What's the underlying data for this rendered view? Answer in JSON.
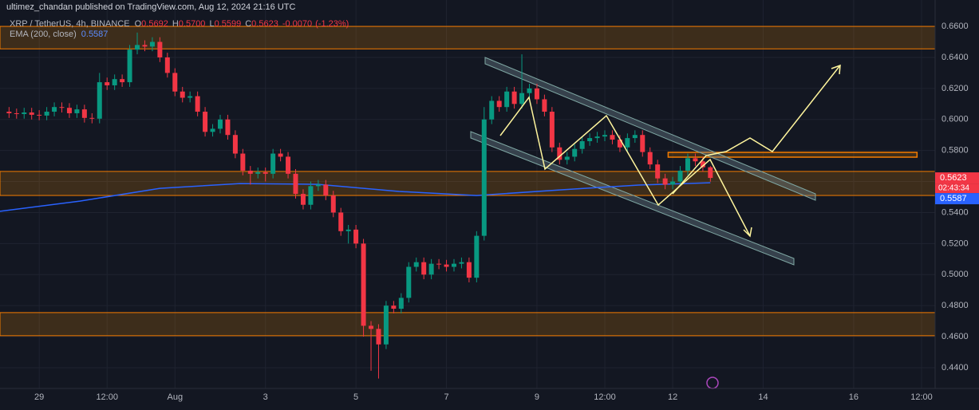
{
  "chart_data": {
    "type": "candlestick",
    "title": "ultimez_chandan published on TradingView.com, Aug 12, 2024 21:16 UTC",
    "subtitle": "XRP / TetherUS, 4h, BINANCE",
    "ohlc": {
      "keys": [
        "O",
        "H",
        "L",
        "C"
      ],
      "values": [
        0.5692,
        0.57,
        0.5599,
        0.5623
      ],
      "value_labels": [
        "0.5692",
        "0.5700",
        "0.5599",
        "0.5623"
      ],
      "change": {
        "value": -0.007,
        "label": "-0.0070"
      },
      "change_pct": {
        "value": -1.23,
        "label": "(-1.23%)"
      }
    },
    "up_color": "#089981",
    "down_color": "#f23645",
    "x": [
      0,
      1,
      2,
      3,
      4,
      5,
      6,
      7,
      8,
      9,
      10,
      11,
      12,
      13,
      14,
      15,
      16,
      17,
      18,
      19,
      20,
      21,
      22,
      23,
      24,
      25,
      26,
      27,
      28,
      29,
      30,
      31,
      32,
      33,
      34,
      35,
      36,
      37,
      38,
      39,
      40,
      41,
      42,
      43,
      44,
      45,
      46,
      47,
      48,
      49,
      50,
      51,
      52,
      53,
      54,
      55,
      56,
      57,
      58,
      59,
      60,
      61,
      62,
      63,
      64,
      65,
      66,
      67,
      68,
      69,
      70,
      71,
      72,
      73,
      74,
      75,
      76,
      77,
      78,
      79,
      80,
      81,
      82,
      83,
      84,
      85,
      86,
      87,
      88,
      89,
      90,
      91,
      92,
      93
    ],
    "open": [
      0.605,
      0.604,
      0.6035,
      0.6045,
      0.603,
      0.6025,
      0.605,
      0.608,
      0.6075,
      0.604,
      0.6065,
      0.601,
      0.6005,
      0.624,
      0.622,
      0.626,
      0.624,
      0.645,
      0.648,
      0.647,
      0.65,
      0.64,
      0.63,
      0.618,
      0.614,
      0.615,
      0.605,
      0.592,
      0.594,
      0.6,
      0.59,
      0.578,
      0.567,
      0.565,
      0.566,
      0.565,
      0.578,
      0.576,
      0.565,
      0.552,
      0.545,
      0.557,
      0.558,
      0.551,
      0.54,
      0.528,
      0.529,
      0.52,
      0.467,
      0.465,
      0.455,
      0.48,
      0.478,
      0.485,
      0.505,
      0.508,
      0.5,
      0.507,
      0.5065,
      0.505,
      0.507,
      0.508,
      0.498,
      0.525,
      0.6,
      0.612,
      0.608,
      0.618,
      0.61,
      0.617,
      0.62,
      0.613,
      0.605,
      0.582,
      0.574,
      0.576,
      0.581,
      0.586,
      0.588,
      0.589,
      0.59,
      0.587,
      0.582,
      0.588,
      0.59,
      0.579,
      0.571,
      0.562,
      0.558,
      0.56,
      0.567,
      0.575,
      0.573,
      0.5692
    ],
    "high": [
      0.608,
      0.607,
      0.6075,
      0.6075,
      0.606,
      0.608,
      0.611,
      0.611,
      0.6105,
      0.6095,
      0.6095,
      0.604,
      0.63,
      0.627,
      0.629,
      0.629,
      0.648,
      0.656,
      0.651,
      0.653,
      0.653,
      0.643,
      0.633,
      0.621,
      0.618,
      0.618,
      0.608,
      0.597,
      0.603,
      0.603,
      0.593,
      0.581,
      0.57,
      0.569,
      0.569,
      0.581,
      0.581,
      0.579,
      0.568,
      0.555,
      0.56,
      0.561,
      0.561,
      0.554,
      0.543,
      0.532,
      0.532,
      0.523,
      0.47,
      0.468,
      0.483,
      0.483,
      0.488,
      0.508,
      0.511,
      0.511,
      0.51,
      0.51,
      0.5095,
      0.51,
      0.511,
      0.511,
      0.528,
      0.608,
      0.615,
      0.615,
      0.621,
      0.621,
      0.642,
      0.623,
      0.623,
      0.616,
      0.608,
      0.585,
      0.579,
      0.584,
      0.589,
      0.591,
      0.592,
      0.593,
      0.593,
      0.59,
      0.591,
      0.593,
      0.593,
      0.582,
      0.574,
      0.565,
      0.563,
      0.57,
      0.578,
      0.578,
      0.576,
      0.57
    ],
    "low": [
      0.601,
      0.6005,
      0.6005,
      0.6,
      0.5995,
      0.5995,
      0.602,
      0.6045,
      0.601,
      0.601,
      0.598,
      0.5975,
      0.5975,
      0.619,
      0.619,
      0.621,
      0.621,
      0.642,
      0.644,
      0.644,
      0.637,
      0.627,
      0.615,
      0.611,
      0.611,
      0.602,
      0.589,
      0.589,
      0.591,
      0.587,
      0.575,
      0.564,
      0.558,
      0.562,
      0.56,
      0.562,
      0.573,
      0.562,
      0.549,
      0.542,
      0.542,
      0.554,
      0.548,
      0.537,
      0.525,
      0.52,
      0.517,
      0.46,
      0.438,
      0.433,
      0.452,
      0.475,
      0.475,
      0.482,
      0.502,
      0.497,
      0.497,
      0.5035,
      0.502,
      0.502,
      0.504,
      0.495,
      0.495,
      0.522,
      0.597,
      0.605,
      0.605,
      0.607,
      0.607,
      0.614,
      0.61,
      0.602,
      0.579,
      0.571,
      0.571,
      0.573,
      0.578,
      0.583,
      0.585,
      0.586,
      0.584,
      0.579,
      0.579,
      0.585,
      0.576,
      0.568,
      0.559,
      0.555,
      0.555,
      0.557,
      0.564,
      0.57,
      0.5662,
      0.5599
    ],
    "close": [
      0.604,
      0.6035,
      0.6045,
      0.603,
      0.6025,
      0.605,
      0.608,
      0.6075,
      0.604,
      0.6065,
      0.601,
      0.6005,
      0.624,
      0.622,
      0.626,
      0.624,
      0.645,
      0.648,
      0.647,
      0.65,
      0.64,
      0.63,
      0.618,
      0.614,
      0.615,
      0.605,
      0.592,
      0.594,
      0.6,
      0.59,
      0.578,
      0.567,
      0.565,
      0.566,
      0.565,
      0.578,
      0.576,
      0.565,
      0.552,
      0.545,
      0.557,
      0.558,
      0.551,
      0.54,
      0.528,
      0.529,
      0.52,
      0.467,
      0.465,
      0.455,
      0.48,
      0.478,
      0.485,
      0.505,
      0.508,
      0.5,
      0.507,
      0.5065,
      0.505,
      0.507,
      0.508,
      0.498,
      0.525,
      0.6,
      0.612,
      0.608,
      0.618,
      0.61,
      0.617,
      0.62,
      0.613,
      0.605,
      0.582,
      0.574,
      0.576,
      0.581,
      0.586,
      0.588,
      0.589,
      0.59,
      0.587,
      0.582,
      0.588,
      0.59,
      0.579,
      0.571,
      0.562,
      0.558,
      0.56,
      0.567,
      0.575,
      0.573,
      0.5692,
      0.5623
    ],
    "ema": {
      "name": "EMA (200, close)",
      "color": "#2962ff",
      "value": 0.5587,
      "x": [
        -1.2,
        9.4,
        20,
        30.6,
        41,
        51.7,
        62,
        73,
        83.5,
        93
      ],
      "values": [
        0.5408,
        0.5474,
        0.5556,
        0.5587,
        0.5582,
        0.5536,
        0.551,
        0.5546,
        0.5577,
        0.5592
      ]
    },
    "zones": [
      {
        "top": 0.66,
        "bottom": 0.6455
      },
      {
        "top": 0.5665,
        "bottom": 0.551
      },
      {
        "top": 0.4755,
        "bottom": 0.4606
      }
    ],
    "box": {
      "top": 0.5788,
      "bottom": 0.5757,
      "x": [
        87.4,
        120.4
      ]
    },
    "last_price": 0.5623,
    "countdown": "02:43:34",
    "xlim": [
      -1.2,
      122.8
    ],
    "ylim": [
      0.4266,
      0.677
    ],
    "xticks": [
      {
        "value": 4,
        "label": "29"
      },
      {
        "value": 13,
        "label": "12:00"
      },
      {
        "value": 22,
        "label": "Aug"
      },
      {
        "value": 34,
        "label": "3"
      },
      {
        "value": 46,
        "label": "5"
      },
      {
        "value": 58,
        "label": "7"
      },
      {
        "value": 70,
        "label": "9"
      },
      {
        "value": 79,
        "label": "12:00"
      },
      {
        "value": 88,
        "label": "12"
      },
      {
        "value": 100,
        "label": "14"
      },
      {
        "value": 112,
        "label": "16"
      },
      {
        "value": 121,
        "label": "12:00"
      }
    ],
    "yticks": [
      {
        "value": 0.66,
        "label": "0.6600"
      },
      {
        "value": 0.64,
        "label": "0.6400"
      },
      {
        "value": 0.62,
        "label": "0.6200"
      },
      {
        "value": 0.6,
        "label": "0.6000"
      },
      {
        "value": 0.58,
        "label": "0.5800"
      },
      {
        "value": 0.56,
        "label": "0.5600"
      },
      {
        "value": 0.54,
        "label": "0.5400"
      },
      {
        "value": 0.52,
        "label": "0.5200"
      },
      {
        "value": 0.5,
        "label": "0.5000"
      },
      {
        "value": 0.48,
        "label": "0.4800"
      },
      {
        "value": 0.46,
        "label": "0.4600"
      },
      {
        "value": 0.44,
        "label": "0.4400"
      }
    ],
    "grid": true
  }
}
